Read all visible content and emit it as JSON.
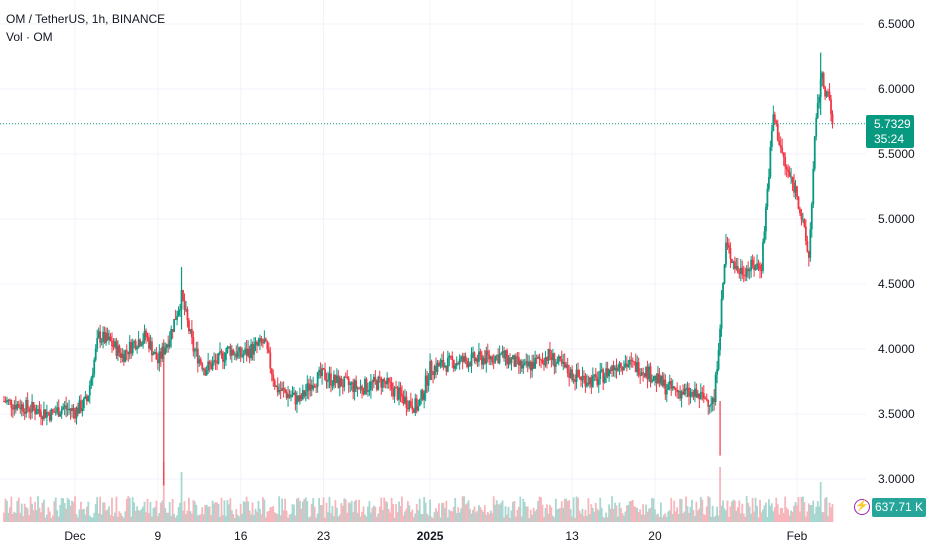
{
  "legend": {
    "symbol_line": "OM / TetherUS, 1h, BINANCE",
    "volume_line": "Vol · OM"
  },
  "last_price": {
    "value": "5.7329",
    "countdown": "35:24",
    "value_num": 5.7329,
    "color": "#089981"
  },
  "volume_badge": {
    "value": "637.71 K",
    "color": "#26a69a",
    "icon": "lightning-icon"
  },
  "colors": {
    "up": "#089981",
    "down": "#f23645",
    "vol_up": "#a7d7d0",
    "vol_down": "#f7b6bb",
    "grid": "#f0f3fa",
    "text": "#131722"
  },
  "chart_data": {
    "type": "candlestick",
    "title": "OM / TetherUS, 1h, BINANCE",
    "yaxis": {
      "ticks": [
        "6.5000",
        "6.0000",
        "5.5000",
        "5.0000",
        "4.5000",
        "4.0000",
        "3.5000",
        "3.0000"
      ],
      "tick_values": [
        6.5,
        6.0,
        5.5,
        5.0,
        4.5,
        4.0,
        3.5,
        3.0
      ],
      "ylim": [
        2.7,
        6.6
      ]
    },
    "xaxis": {
      "ticks": [
        "Dec",
        "9",
        "16",
        "23",
        "2025",
        "13",
        "20",
        "Feb"
      ],
      "tick_dates": [
        "2024-12-02",
        "2024-12-09",
        "2024-12-16",
        "2024-12-23",
        "2025-01-01",
        "2025-01-13",
        "2025-01-20",
        "2025-02-01"
      ],
      "range": [
        "2024-11-26",
        "2025-02-04"
      ]
    },
    "price_path": [
      [
        "2024-11-26",
        3.6
      ],
      [
        "2024-11-28",
        3.55
      ],
      [
        "2024-11-30",
        3.5
      ],
      [
        "2024-12-01",
        3.55
      ],
      [
        "2024-12-02",
        3.52
      ],
      [
        "2024-12-03",
        3.6
      ],
      [
        "2024-12-04",
        4.1
      ],
      [
        "2024-12-05",
        4.05
      ],
      [
        "2024-12-06",
        3.95
      ],
      [
        "2024-12-07",
        4.05
      ],
      [
        "2024-12-08",
        4.1
      ],
      [
        "2024-12-09",
        3.9
      ],
      [
        "2024-12-10",
        4.1
      ],
      [
        "2024-12-11",
        4.4
      ],
      [
        "2024-12-12",
        4.0
      ],
      [
        "2024-12-13",
        3.85
      ],
      [
        "2024-12-14",
        3.9
      ],
      [
        "2024-12-15",
        4.0
      ],
      [
        "2024-12-16",
        3.95
      ],
      [
        "2024-12-17",
        4.0
      ],
      [
        "2024-12-18",
        4.05
      ],
      [
        "2024-12-19",
        3.7
      ],
      [
        "2024-12-20",
        3.65
      ],
      [
        "2024-12-21",
        3.6
      ],
      [
        "2024-12-22",
        3.75
      ],
      [
        "2024-12-23",
        3.8
      ],
      [
        "2024-12-24",
        3.75
      ],
      [
        "2024-12-26",
        3.7
      ],
      [
        "2024-12-28",
        3.75
      ],
      [
        "2024-12-30",
        3.6
      ],
      [
        "2024-12-31",
        3.55
      ],
      [
        "2025-01-01",
        3.85
      ],
      [
        "2025-01-03",
        3.9
      ],
      [
        "2025-01-05",
        3.92
      ],
      [
        "2025-01-07",
        3.95
      ],
      [
        "2025-01-09",
        3.85
      ],
      [
        "2025-01-11",
        3.95
      ],
      [
        "2025-01-13",
        3.8
      ],
      [
        "2025-01-15",
        3.75
      ],
      [
        "2025-01-17",
        3.9
      ],
      [
        "2025-01-19",
        3.85
      ],
      [
        "2025-01-21",
        3.7
      ],
      [
        "2025-01-23",
        3.65
      ],
      [
        "2025-01-25",
        3.6
      ],
      [
        "2025-01-26",
        4.8
      ],
      [
        "2025-01-27",
        4.6
      ],
      [
        "2025-01-29",
        4.65
      ],
      [
        "2025-01-30",
        5.8
      ],
      [
        "2025-01-31",
        5.4
      ],
      [
        "2025-02-01",
        5.2
      ],
      [
        "2025-02-02",
        4.7
      ],
      [
        "2025-02-02T12",
        5.6
      ],
      [
        "2025-02-03",
        6.1
      ],
      [
        "2025-02-03T18",
        5.9
      ],
      [
        "2025-02-04",
        5.73
      ]
    ],
    "notable": {
      "dec9_spike_low": 2.95,
      "dec11_high": 4.63,
      "feb3_high": 6.28,
      "jan25_low": 3.18
    }
  }
}
